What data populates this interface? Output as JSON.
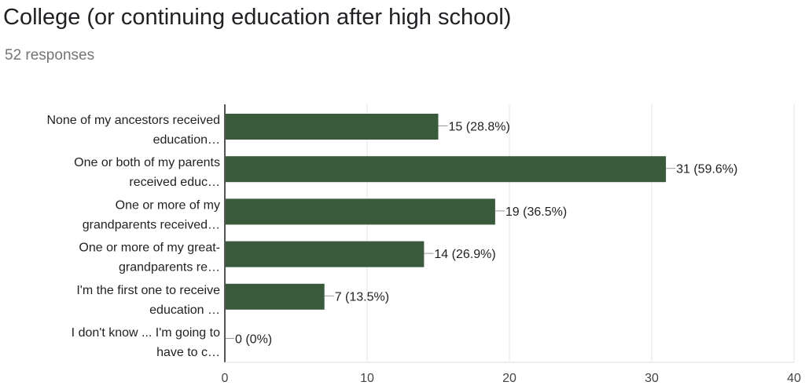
{
  "header": {
    "title": "College (or continuing education after high school)",
    "responses": "52 responses"
  },
  "chart_data": {
    "type": "bar",
    "orientation": "horizontal",
    "title": "College (or continuing education after high school)",
    "categories": [
      [
        "None of my ancestors received",
        "education…"
      ],
      [
        "One or both of my parents",
        "received educ…"
      ],
      [
        "One or more of my",
        "grandparents received…"
      ],
      [
        "One or more of my great-",
        "grandparents re…"
      ],
      [
        "I'm the first one to receive",
        "education …"
      ],
      [
        "I don't know ... I'm going to",
        "have to c…"
      ]
    ],
    "values": [
      15,
      31,
      19,
      14,
      7,
      0
    ],
    "data_labels": [
      "15 (28.8%)",
      "31 (59.6%)",
      "19 (36.5%)",
      "14 (26.9%)",
      "7 (13.5%)",
      "0 (0%)"
    ],
    "xlim": [
      0,
      40
    ],
    "xticks": [
      "0",
      "10",
      "20",
      "30",
      "40"
    ],
    "grid": true,
    "bar_color": "#3a5a3c"
  }
}
